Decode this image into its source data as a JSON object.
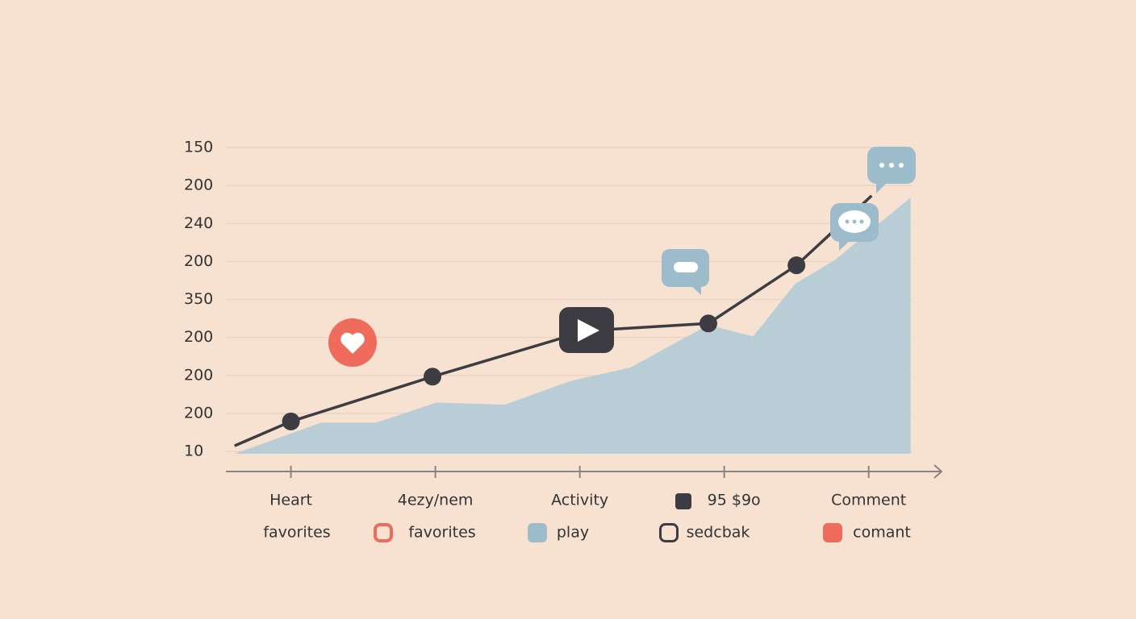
{
  "chart_data": {
    "type": "line",
    "xlim": [
      -0.45,
      4.51
    ],
    "ylim": [
      -0.06,
      8
    ],
    "xticks": [
      {
        "value": 0,
        "label": "Heart"
      },
      {
        "value": 1,
        "label": "4ezy/nem"
      },
      {
        "value": 2,
        "label": "Activity"
      },
      {
        "value": 3,
        "label": "95 $9o"
      },
      {
        "value": 4,
        "label": "Comment"
      }
    ],
    "yticks": [
      {
        "value": 0,
        "label": "10"
      },
      {
        "value": 1,
        "label": "200"
      },
      {
        "value": 2,
        "label": "200"
      },
      {
        "value": 3,
        "label": "200"
      },
      {
        "value": 4,
        "label": "350"
      },
      {
        "value": 5,
        "label": "200"
      },
      {
        "value": 6,
        "label": "240"
      },
      {
        "value": 7,
        "label": "200"
      },
      {
        "value": 8,
        "label": "150"
      }
    ],
    "grid": true,
    "series": [
      {
        "type": "area",
        "color": "#b9cdd7",
        "x": [
          -0.39,
          0.21,
          0.59,
          1.01,
          1.48,
          1.93,
          2.35,
          2.89,
          3.2,
          3.49,
          3.77,
          4.02,
          4.29
        ],
        "values": [
          -0.06,
          0.76,
          0.76,
          1.29,
          1.23,
          1.85,
          2.21,
          3.33,
          3.03,
          4.41,
          5.05,
          5.84,
          6.68
        ]
      },
      {
        "type": "line",
        "color": "#3c3c42",
        "x": [
          -0.39,
          0.0,
          0.98,
          2.05,
          2.89,
          3.5,
          4.02
        ],
        "values": [
          0.15,
          0.79,
          1.97,
          3.18,
          3.37,
          4.9,
          6.73
        ]
      }
    ],
    "legend": [
      {
        "name": "favorites"
      },
      {
        "name": "favorites",
        "color": "#ef6b5b",
        "style": "outline"
      },
      {
        "name": "play",
        "color": "#9dbccb",
        "style": "filled"
      },
      {
        "name": "sedcbak",
        "color": "#3c3c42",
        "style": "outline"
      },
      {
        "name": "comant",
        "color": "#ef6b5b",
        "style": "filled"
      }
    ]
  }
}
